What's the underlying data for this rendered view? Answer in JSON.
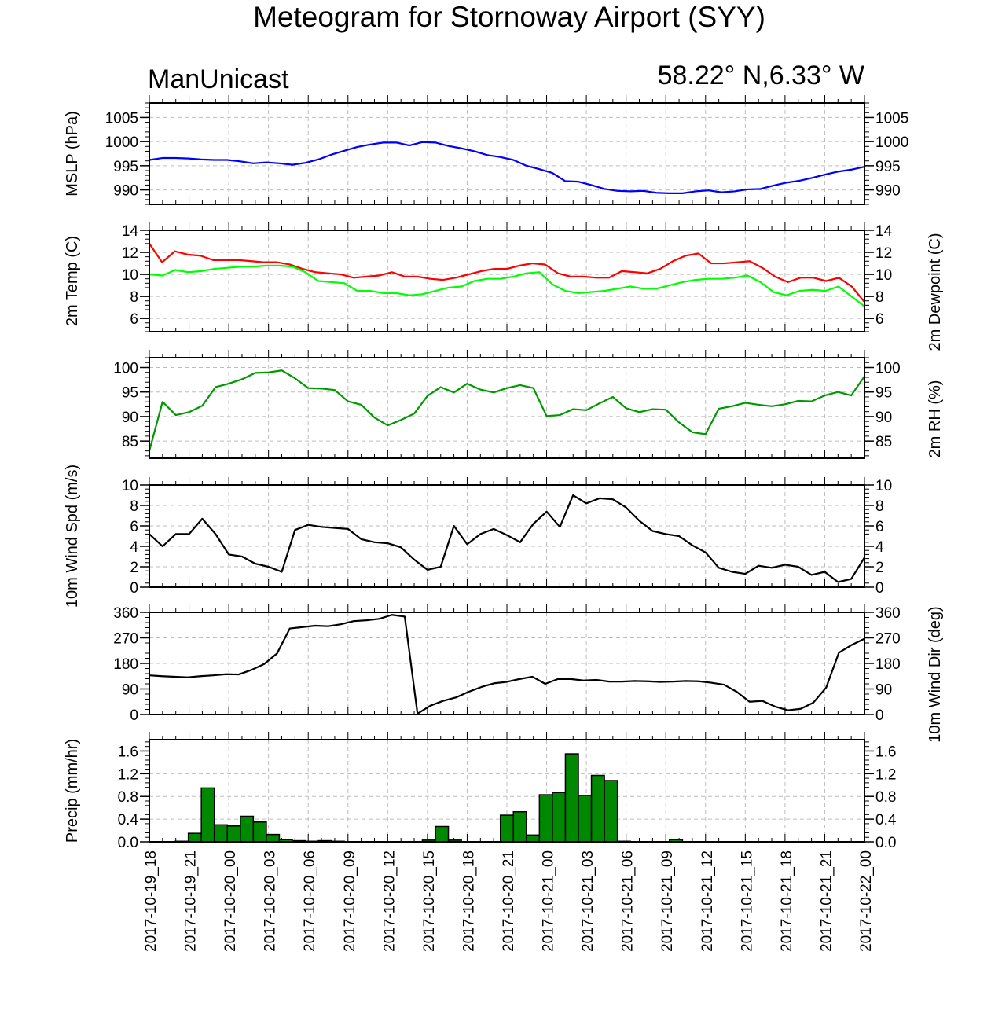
{
  "title": "Meteogram for Stornoway Airport (SYY)",
  "model": "ManUnicast",
  "location": "58.22° N,6.33° W",
  "time_labels": [
    "2017-10-19_18",
    "2017-10-19_21",
    "2017-10-20_00",
    "2017-10-20_03",
    "2017-10-20_06",
    "2017-10-20_09",
    "2017-10-20_12",
    "2017-10-20_15",
    "2017-10-20_18",
    "2017-10-20_21",
    "2017-10-21_00",
    "2017-10-21_03",
    "2017-10-21_06",
    "2017-10-21_09",
    "2017-10-21_12",
    "2017-10-21_15",
    "2017-10-21_18",
    "2017-10-21_21",
    "2017-10-22_00"
  ],
  "colors": {
    "mslp": "#0000ff",
    "temp": "#ff0000",
    "dewpoint": "#00ff00",
    "rh": "#009900",
    "wind": "#000000",
    "precip_fill": "#008800",
    "grid": "#bdbdbd"
  },
  "chart_data": [
    {
      "type": "line",
      "name": "mslp",
      "x": "hours since 2017-10-19_18",
      "ylabel": "MSLP (hPa)",
      "ylabel_right": "",
      "ylim": [
        987,
        1008
      ],
      "yticks": [
        990,
        995,
        1000,
        1005
      ],
      "series": [
        {
          "name": "MSLP",
          "color": "#0000ff",
          "values": [
            996.2,
            996.6,
            996.6,
            996.5,
            996.3,
            996.2,
            996.2,
            995.9,
            995.5,
            995.7,
            995.5,
            995.2,
            995.6,
            996.3,
            997.3,
            998.1,
            998.9,
            999.4,
            999.8,
            999.8,
            999.2,
            999.9,
            999.8,
            999.1,
            998.6,
            998,
            997.2,
            996.8,
            996.2,
            995,
            994.3,
            993.5,
            991.8,
            991.7,
            991,
            990.2,
            989.8,
            989.7,
            989.8,
            989.4,
            989.3,
            989.3,
            989.7,
            989.9,
            989.5,
            989.7,
            990.1,
            990.2,
            990.9,
            991.5,
            991.9,
            992.5,
            993.2,
            993.8,
            994.2,
            994.8
          ]
        }
      ]
    },
    {
      "type": "line",
      "name": "temp",
      "ylabel": "2m Temp (C)",
      "ylabel_right": "2m Dewpoint (C)",
      "ylim": [
        4.8,
        14
      ],
      "yticks": [
        6,
        8,
        10,
        12,
        14
      ],
      "series": [
        {
          "name": "2m Temp",
          "color": "#ff0000",
          "values": [
            12.8,
            11.1,
            12.1,
            11.8,
            11.7,
            11.3,
            11.3,
            11.3,
            11.2,
            11.1,
            11.1,
            10.9,
            10.5,
            10.2,
            10.1,
            10,
            9.7,
            9.8,
            9.9,
            10.2,
            9.8,
            9.8,
            9.6,
            9.5,
            9.7,
            10,
            10.3,
            10.5,
            10.5,
            10.8,
            11,
            10.9,
            10.1,
            9.8,
            9.8,
            9.7,
            9.7,
            10.3,
            10.2,
            10.1,
            10.5,
            11.2,
            11.7,
            11.9,
            11,
            11,
            11.1,
            11.2,
            10.6,
            9.8,
            9.3,
            9.7,
            9.7,
            9.4,
            9.7,
            8.9,
            7.5
          ]
        },
        {
          "name": "2m Dewpoint",
          "color": "#00ff00",
          "values": [
            10,
            9.9,
            10.4,
            10.2,
            10.3,
            10.5,
            10.6,
            10.7,
            10.7,
            10.8,
            10.8,
            10.7,
            10.2,
            9.4,
            9.3,
            9.2,
            8.5,
            8.5,
            8.3,
            8.3,
            8.1,
            8.2,
            8.5,
            8.8,
            8.9,
            9.4,
            9.6,
            9.6,
            9.8,
            10.1,
            10.2,
            9.1,
            8.5,
            8.3,
            8.4,
            8.5,
            8.7,
            8.9,
            8.7,
            8.7,
            9,
            9.3,
            9.5,
            9.6,
            9.6,
            9.7,
            9.9,
            9.3,
            8.4,
            8.1,
            8.5,
            8.6,
            8.5,
            8.9,
            8,
            7.1
          ]
        }
      ]
    },
    {
      "type": "line",
      "name": "rh",
      "ylabel": "",
      "ylabel_right": "2m RH (%)",
      "ylim": [
        81.5,
        102
      ],
      "yticks": [
        85,
        90,
        95,
        100
      ],
      "series": [
        {
          "name": "2m RH",
          "color": "#009900",
          "values": [
            83,
            93,
            90.3,
            90.9,
            92.2,
            96,
            96.7,
            97.6,
            98.9,
            99,
            99.4,
            97.8,
            95.8,
            95.7,
            95.4,
            93.1,
            92.4,
            89.8,
            88.2,
            89.3,
            90.6,
            94.2,
            96,
            94.9,
            96.7,
            95.5,
            94.9,
            95.8,
            96.4,
            95.8,
            90.1,
            90.3,
            91.5,
            91.3,
            92.7,
            94,
            91.7,
            90.9,
            91.5,
            91.4,
            88.8,
            86.8,
            86.4,
            91.6,
            92.1,
            92.8,
            92.4,
            92.1,
            92.5,
            93.2,
            93.1,
            94.3,
            95,
            94.3,
            98.2
          ]
        }
      ]
    },
    {
      "type": "line",
      "name": "wind_speed",
      "ylabel": "10m Wind Spd (m/s)",
      "ylabel_right": "",
      "ylim": [
        0,
        10
      ],
      "yticks": [
        0,
        2,
        4,
        6,
        8,
        10
      ],
      "series": [
        {
          "name": "10m Wind Spd",
          "color": "#000000",
          "values": [
            5.2,
            4,
            5.2,
            5.2,
            6.7,
            5.2,
            3.2,
            3,
            2.3,
            2,
            1.5,
            5.6,
            6.1,
            5.9,
            5.8,
            5.7,
            4.7,
            4.4,
            4.3,
            3.9,
            2.7,
            1.7,
            2,
            6,
            4.2,
            5.2,
            5.7,
            5.1,
            4.4,
            6.2,
            7.4,
            5.9,
            9,
            8.2,
            8.7,
            8.6,
            7.8,
            6.5,
            5.5,
            5.2,
            5,
            4.1,
            3.4,
            1.9,
            1.5,
            1.3,
            2.1,
            1.9,
            2.2,
            2,
            1.2,
            1.5,
            0.5,
            0.8,
            2.9
          ]
        }
      ]
    },
    {
      "type": "line",
      "name": "wind_direction",
      "ylabel": "",
      "ylabel_right": "10m Wind Dir (deg)",
      "ylim": [
        0,
        360
      ],
      "yticks": [
        0,
        90,
        180,
        270,
        360
      ],
      "series": [
        {
          "name": "10m Wind Dir",
          "color": "#000000",
          "values": [
            138,
            135,
            133,
            131,
            135,
            138,
            142,
            141,
            157,
            178,
            215,
            303,
            308,
            313,
            311,
            318,
            329,
            332,
            337,
            351,
            345,
            3,
            31,
            48,
            60,
            80,
            97,
            110,
            115,
            125,
            133,
            108,
            125,
            125,
            120,
            122,
            116,
            116,
            118,
            117,
            115,
            116,
            118,
            117,
            112,
            105,
            80,
            45,
            48,
            28,
            15,
            20,
            42,
            95,
            218,
            245,
            267
          ]
        }
      ]
    },
    {
      "type": "bar",
      "name": "precip",
      "ylabel": "Precip (mm/hr)",
      "ylabel_right": "",
      "ylim": [
        0,
        1.8
      ],
      "yticks": [
        0.0,
        0.4,
        0.8,
        1.2,
        1.6
      ],
      "series": [
        {
          "name": "Precip",
          "color": "#008800",
          "values": [
            0,
            0,
            0.01,
            0.15,
            0.95,
            0.3,
            0.28,
            0.45,
            0.35,
            0.13,
            0.04,
            0.02,
            0.01,
            0.02,
            0.01,
            0,
            0,
            0,
            0,
            0,
            0,
            0.03,
            0.27,
            0.03,
            0,
            0,
            0,
            0.47,
            0.53,
            0.12,
            0.83,
            0.87,
            1.55,
            0.82,
            1.17,
            1.08,
            0.01,
            0,
            0,
            0,
            0.04,
            0,
            0,
            0,
            0,
            0,
            0,
            0,
            0,
            0,
            0,
            0,
            0,
            0,
            0
          ]
        }
      ]
    }
  ]
}
